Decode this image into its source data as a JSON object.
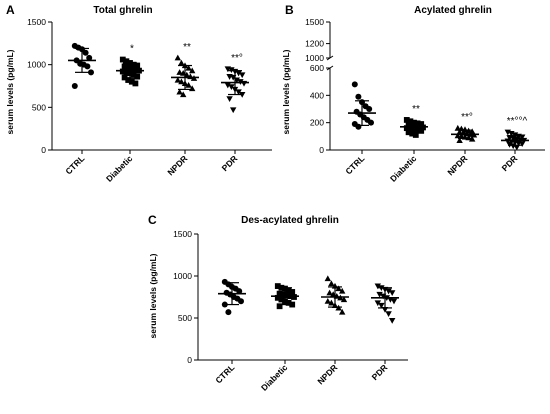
{
  "figure": {
    "panels": [
      {
        "letter": "A",
        "title": "Total ghrelin"
      },
      {
        "letter": "B",
        "title": "Acylated ghrelin"
      },
      {
        "letter": "C",
        "title": "Des-acylated ghrelin"
      }
    ]
  },
  "chart_data": [
    {
      "type": "scatter",
      "title": "Total ghrelin",
      "ylabel": "serum levels (pg/mL)",
      "ylim": [
        0,
        1500
      ],
      "yticks": [
        "0",
        "500",
        "1000",
        "1500"
      ],
      "categories": [
        "CTRL",
        "Diabetic",
        "NPDR",
        "PDR"
      ],
      "markers": [
        "circle",
        "square",
        "triangle-up",
        "triangle-down"
      ],
      "significance": [
        "",
        "*",
        "**",
        "**°"
      ],
      "series": [
        {
          "mean": 1050,
          "sd": 140,
          "values": [
            1220,
            1200,
            1180,
            1140,
            1080,
            1050,
            1010,
            1000,
            980,
            910,
            750
          ]
        },
        {
          "mean": 930,
          "sd": 90,
          "values": [
            1060,
            1040,
            1020,
            1000,
            990,
            980,
            960,
            950,
            940,
            930,
            920,
            910,
            900,
            880,
            860,
            850,
            820,
            800,
            780
          ]
        },
        {
          "mean": 850,
          "sd": 140,
          "values": [
            1080,
            1020,
            990,
            960,
            930,
            910,
            900,
            880,
            860,
            840,
            820,
            800,
            780,
            760,
            720,
            680,
            650
          ]
        },
        {
          "mean": 790,
          "sd": 140,
          "values": [
            950,
            940,
            920,
            900,
            880,
            860,
            850,
            820,
            800,
            780,
            760,
            740,
            710,
            680,
            650,
            600,
            470
          ]
        }
      ]
    },
    {
      "type": "scatter",
      "title": "Acylated ghrelin",
      "ylabel": "serum levels (pg/mL)",
      "ylim": [
        0,
        1500
      ],
      "axis_break": [
        600,
        1000
      ],
      "yticks": [
        "0",
        "200",
        "400",
        "600",
        "1000",
        "1200",
        "1500"
      ],
      "categories": [
        "CTRL",
        "Diabetic",
        "NPDR",
        "PDR"
      ],
      "markers": [
        "circle",
        "square",
        "triangle-up",
        "triangle-down"
      ],
      "significance": [
        "",
        "**",
        "**°",
        "**°°^"
      ],
      "series": [
        {
          "mean": 270,
          "sd": 90,
          "values": [
            480,
            390,
            350,
            320,
            300,
            280,
            260,
            240,
            220,
            200,
            190,
            170
          ]
        },
        {
          "mean": 170,
          "sd": 30,
          "values": [
            220,
            210,
            200,
            195,
            190,
            185,
            180,
            175,
            170,
            165,
            160,
            155,
            150,
            145,
            140,
            130,
            120,
            110
          ]
        },
        {
          "mean": 115,
          "sd": 30,
          "values": [
            160,
            155,
            150,
            140,
            135,
            130,
            125,
            120,
            115,
            110,
            105,
            100,
            95,
            90,
            80,
            70
          ]
        },
        {
          "mean": 70,
          "sd": 35,
          "values": [
            130,
            120,
            110,
            100,
            95,
            90,
            85,
            80,
            75,
            70,
            65,
            60,
            55,
            50,
            45,
            40,
            30,
            20
          ]
        }
      ]
    },
    {
      "type": "scatter",
      "title": "Des-acylated ghrelin",
      "ylabel": "serum levels (pg/mL)",
      "ylim": [
        0,
        1500
      ],
      "yticks": [
        "0",
        "500",
        "1000",
        "1500"
      ],
      "categories": [
        "CTRL",
        "Diabetic",
        "NPDR",
        "PDR"
      ],
      "markers": [
        "circle",
        "square",
        "triangle-up",
        "triangle-down"
      ],
      "significance": [
        "",
        "",
        "",
        ""
      ],
      "series": [
        {
          "mean": 790,
          "sd": 130,
          "values": [
            930,
            900,
            870,
            850,
            820,
            800,
            780,
            750,
            730,
            700,
            660,
            570
          ]
        },
        {
          "mean": 760,
          "sd": 100,
          "values": [
            880,
            860,
            850,
            830,
            810,
            790,
            780,
            770,
            760,
            750,
            740,
            720,
            700,
            680,
            660,
            640
          ]
        },
        {
          "mean": 750,
          "sd": 120,
          "values": [
            970,
            910,
            880,
            850,
            820,
            800,
            780,
            760,
            740,
            720,
            700,
            680,
            650,
            620,
            570
          ]
        },
        {
          "mean": 740,
          "sd": 120,
          "values": [
            880,
            860,
            840,
            820,
            800,
            780,
            760,
            740,
            720,
            700,
            680,
            650,
            600,
            550,
            470
          ]
        }
      ]
    }
  ]
}
